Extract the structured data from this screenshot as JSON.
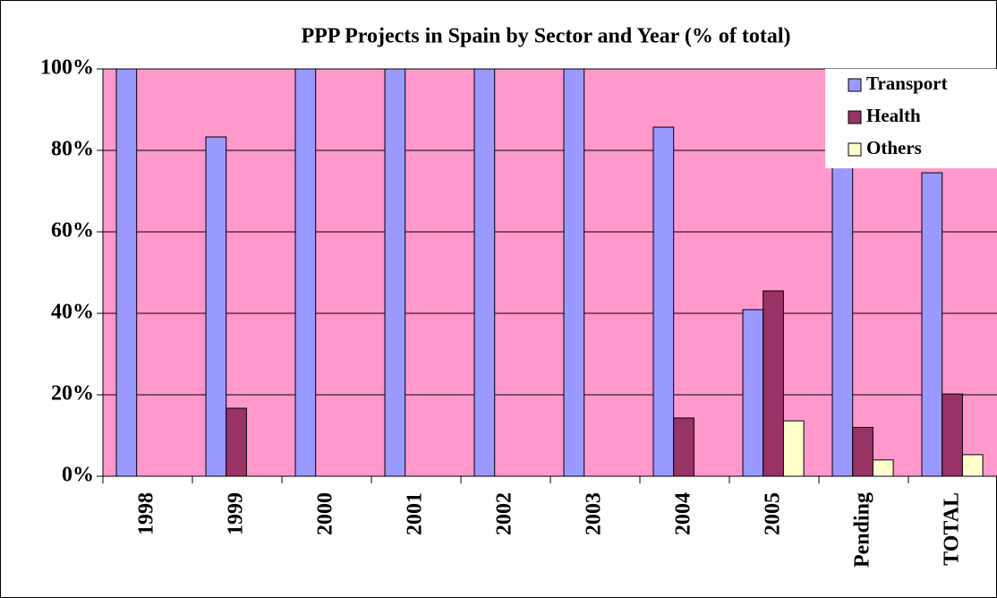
{
  "chart_data": {
    "type": "bar",
    "title": "PPP Projects in Spain by Sector and Year (% of total)",
    "categories": [
      "1998",
      "1999",
      "2000",
      "2001",
      "2002",
      "2003",
      "2004",
      "2005",
      "Pending",
      "TOTAL"
    ],
    "series": [
      {
        "name": "Transport",
        "color": "#9999ff",
        "values": [
          100,
          83.3,
          100,
          100,
          100,
          100,
          85.7,
          40.9,
          84,
          74.5
        ]
      },
      {
        "name": "Health",
        "color": "#993366",
        "values": [
          0,
          16.7,
          0,
          0,
          0,
          0,
          14.3,
          45.5,
          12,
          20.2
        ]
      },
      {
        "name": "Others",
        "color": "#ffffcc",
        "values": [
          0,
          0,
          0,
          0,
          0,
          0,
          0,
          13.6,
          4,
          5.3
        ]
      }
    ],
    "ylim": [
      0,
      100
    ],
    "yticks": [
      {
        "value": 0,
        "label": "0%"
      },
      {
        "value": 20,
        "label": "20%"
      },
      {
        "value": 40,
        "label": "40%"
      },
      {
        "value": 60,
        "label": "60%"
      },
      {
        "value": 80,
        "label": "80%"
      },
      {
        "value": 100,
        "label": "100%"
      }
    ],
    "grid": true,
    "plot_background": "#ff99cc",
    "legend": "top-right"
  }
}
